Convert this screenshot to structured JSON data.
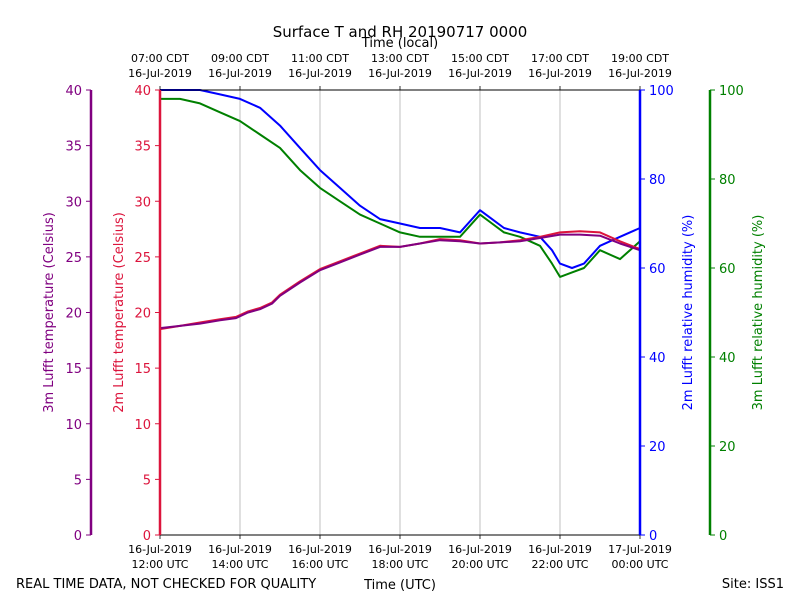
{
  "chart_data": {
    "type": "line",
    "title": "Surface T and RH 20190717 0000",
    "top_axis_label": "Time (local)",
    "bottom_axis_label": "Time (UTC)",
    "footer_left": "REAL TIME DATA, NOT CHECKED FOR QUALITY",
    "footer_right": "Site: ISS1",
    "x_range_hours_utc": [
      12,
      24
    ],
    "top_ticks": [
      {
        "hour": 12,
        "line1": "07:00 CDT",
        "line2": "16-Jul-2019"
      },
      {
        "hour": 14,
        "line1": "09:00 CDT",
        "line2": "16-Jul-2019"
      },
      {
        "hour": 16,
        "line1": "11:00 CDT",
        "line2": "16-Jul-2019"
      },
      {
        "hour": 18,
        "line1": "13:00 CDT",
        "line2": "16-Jul-2019"
      },
      {
        "hour": 20,
        "line1": "15:00 CDT",
        "line2": "16-Jul-2019"
      },
      {
        "hour": 22,
        "line1": "17:00 CDT",
        "line2": "16-Jul-2019"
      },
      {
        "hour": 24,
        "line1": "19:00 CDT",
        "line2": "16-Jul-2019"
      }
    ],
    "bottom_ticks": [
      {
        "hour": 12,
        "line1": "16-Jul-2019",
        "line2": "12:00 UTC"
      },
      {
        "hour": 14,
        "line1": "16-Jul-2019",
        "line2": "14:00 UTC"
      },
      {
        "hour": 16,
        "line1": "16-Jul-2019",
        "line2": "16:00 UTC"
      },
      {
        "hour": 18,
        "line1": "16-Jul-2019",
        "line2": "18:00 UTC"
      },
      {
        "hour": 20,
        "line1": "16-Jul-2019",
        "line2": "20:00 UTC"
      },
      {
        "hour": 22,
        "line1": "16-Jul-2019",
        "line2": "22:00 UTC"
      },
      {
        "hour": 24,
        "line1": "17-Jul-2019",
        "line2": "00:00 UTC"
      }
    ],
    "axes": {
      "t3m": {
        "label": "3m Lufft temperature (Celsius)",
        "color": "#800080",
        "range": [
          0,
          40
        ],
        "ticks": [
          0,
          5,
          10,
          15,
          20,
          25,
          30,
          35,
          40
        ]
      },
      "t2m": {
        "label": "2m Lufft temperature (Celsius)",
        "color": "#dc143c",
        "range": [
          0,
          40
        ],
        "ticks": [
          0,
          5,
          10,
          15,
          20,
          25,
          30,
          35,
          40
        ]
      },
      "rh2m": {
        "label": "2m Lufft relative humidity (%)",
        "color": "#0000ff",
        "range": [
          0,
          100
        ],
        "ticks": [
          0,
          20,
          40,
          60,
          80,
          100
        ]
      },
      "rh3m": {
        "label": "3m Lufft relative humidity (%)",
        "color": "#008000",
        "range": [
          0,
          100
        ],
        "ticks": [
          0,
          20,
          40,
          60,
          80,
          100
        ]
      }
    },
    "series": [
      {
        "name": "2m Lufft temperature",
        "axis": "t2m",
        "color": "#dc143c",
        "x": [
          12.0,
          12.5,
          13.0,
          13.5,
          13.9,
          14.2,
          14.5,
          14.8,
          15.0,
          15.5,
          16.0,
          16.5,
          17.0,
          17.5,
          18.0,
          18.5,
          19.0,
          19.5,
          20.0,
          20.5,
          21.0,
          21.5,
          22.0,
          22.5,
          23.0,
          23.5,
          24.0
        ],
        "values": [
          18.5,
          18.8,
          19.1,
          19.4,
          19.6,
          20.1,
          20.4,
          20.9,
          21.6,
          22.8,
          23.9,
          24.6,
          25.3,
          26.0,
          25.9,
          26.2,
          26.6,
          26.5,
          26.2,
          26.3,
          26.5,
          26.8,
          27.2,
          27.3,
          27.2,
          26.4,
          25.7
        ]
      },
      {
        "name": "3m Lufft temperature",
        "axis": "t3m",
        "color": "#800080",
        "x": [
          12.0,
          12.5,
          13.0,
          13.5,
          13.9,
          14.2,
          14.5,
          14.8,
          15.0,
          15.5,
          16.0,
          16.5,
          17.0,
          17.5,
          18.0,
          18.5,
          19.0,
          19.5,
          20.0,
          20.5,
          21.0,
          21.5,
          22.0,
          22.5,
          23.0,
          23.5,
          24.0
        ],
        "values": [
          18.6,
          18.8,
          19.0,
          19.3,
          19.5,
          20.0,
          20.3,
          20.8,
          21.5,
          22.7,
          23.8,
          24.5,
          25.2,
          25.9,
          25.9,
          26.2,
          26.5,
          26.4,
          26.2,
          26.3,
          26.4,
          26.7,
          27.0,
          27.0,
          26.9,
          26.2,
          25.6
        ]
      },
      {
        "name": "2m Lufft relative humidity",
        "axis": "rh2m",
        "color": "#0000ff",
        "x": [
          12.0,
          12.5,
          13.0,
          13.5,
          14.0,
          14.5,
          15.0,
          15.5,
          16.0,
          16.5,
          17.0,
          17.5,
          18.0,
          18.5,
          19.0,
          19.5,
          20.0,
          20.3,
          20.6,
          21.0,
          21.5,
          21.8,
          22.0,
          22.3,
          22.6,
          23.0,
          23.5,
          24.0
        ],
        "values": [
          100,
          100,
          100,
          99,
          98,
          96,
          92,
          87,
          82,
          78,
          74,
          71,
          70,
          69,
          69,
          68,
          73,
          71,
          69,
          68,
          67,
          64,
          61,
          60,
          61,
          65,
          67,
          69
        ]
      },
      {
        "name": "3m Lufft relative humidity",
        "axis": "rh3m",
        "color": "#008000",
        "x": [
          12.0,
          12.5,
          13.0,
          13.5,
          14.0,
          14.5,
          15.0,
          15.5,
          16.0,
          16.5,
          17.0,
          17.5,
          18.0,
          18.5,
          19.0,
          19.5,
          20.0,
          20.3,
          20.6,
          21.0,
          21.5,
          21.8,
          22.0,
          22.3,
          22.6,
          23.0,
          23.5,
          24.0
        ],
        "values": [
          98,
          98,
          97,
          95,
          93,
          90,
          87,
          82,
          78,
          75,
          72,
          70,
          68,
          67,
          67,
          67,
          72,
          70,
          68,
          67,
          65,
          61,
          58,
          59,
          60,
          64,
          62,
          66
        ]
      }
    ]
  }
}
